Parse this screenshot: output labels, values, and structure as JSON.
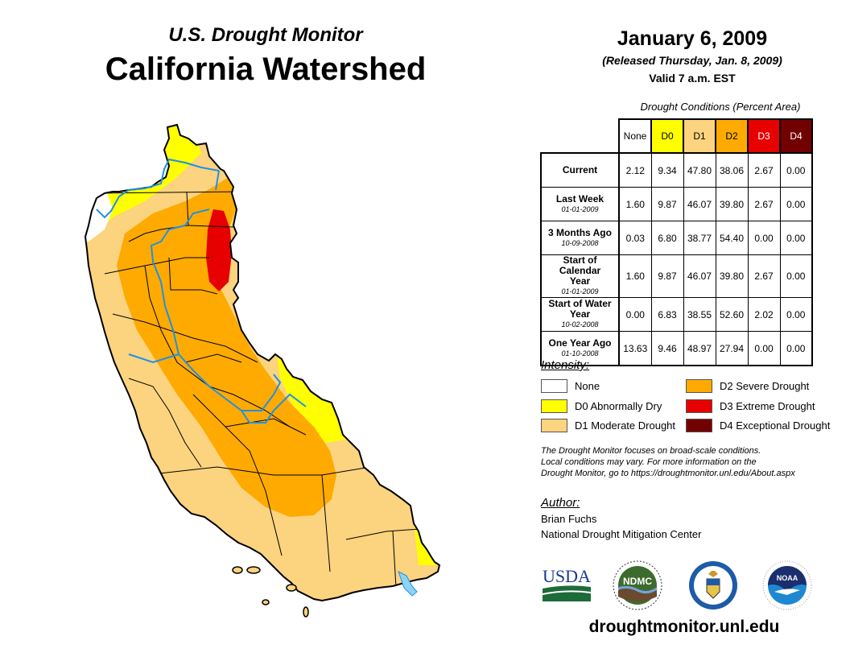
{
  "header": {
    "subtitle": "U.S. Drought Monitor",
    "title": "California Watershed",
    "date": "January 6, 2009",
    "released": "(Released Thursday, Jan. 8, 2009)",
    "valid": "Valid 7 a.m. EST"
  },
  "table": {
    "caption": "Drought Conditions (Percent Area)",
    "columns": [
      {
        "label": "None",
        "color": "#ffffff",
        "text_color": "#000000"
      },
      {
        "label": "D0",
        "color": "#ffff00",
        "text_color": "#000000"
      },
      {
        "label": "D1",
        "color": "#fcd37f",
        "text_color": "#000000"
      },
      {
        "label": "D2",
        "color": "#ffaa00",
        "text_color": "#000000"
      },
      {
        "label": "D3",
        "color": "#e60000",
        "text_color": "#ffffff"
      },
      {
        "label": "D4",
        "color": "#730000",
        "text_color": "#ffffff"
      }
    ],
    "rows": [
      {
        "label": "Current",
        "date": "",
        "values": [
          "2.12",
          "9.34",
          "47.80",
          "38.06",
          "2.67",
          "0.00"
        ]
      },
      {
        "label": "Last Week",
        "date": "01-01-2009",
        "values": [
          "1.60",
          "9.87",
          "46.07",
          "39.80",
          "2.67",
          "0.00"
        ]
      },
      {
        "label": "3 Months Ago",
        "date": "10-09-2008",
        "values": [
          "0.03",
          "6.80",
          "38.77",
          "54.40",
          "0.00",
          "0.00"
        ]
      },
      {
        "label": "Start of Calendar Year",
        "date": "01-01-2009",
        "values": [
          "1.60",
          "9.87",
          "46.07",
          "39.80",
          "2.67",
          "0.00"
        ]
      },
      {
        "label": "Start of Water Year",
        "date": "10-02-2008",
        "values": [
          "0.00",
          "6.83",
          "38.55",
          "52.60",
          "2.02",
          "0.00"
        ]
      },
      {
        "label": "One Year Ago",
        "date": "01-10-2008",
        "values": [
          "13.63",
          "9.46",
          "48.97",
          "27.94",
          "0.00",
          "0.00"
        ]
      }
    ]
  },
  "legend": {
    "title": "Intensity:",
    "items": [
      {
        "label": "None",
        "color": "#ffffff"
      },
      {
        "label": "D0 Abnormally Dry",
        "color": "#ffff00"
      },
      {
        "label": "D1 Moderate Drought",
        "color": "#fcd37f"
      },
      {
        "label": "D2 Severe Drought",
        "color": "#ffaa00"
      },
      {
        "label": "D3 Extreme Drought",
        "color": "#e60000"
      },
      {
        "label": "D4 Exceptional Drought",
        "color": "#730000"
      }
    ]
  },
  "disclaimer": [
    "The Drought Monitor focuses on broad-scale conditions.",
    "Local conditions may vary. For more information on the",
    "Drought Monitor, go to https://droughtmonitor.unl.edu/About.aspx"
  ],
  "author": {
    "title": "Author:",
    "name": "Brian Fuchs",
    "org": "National Drought Mitigation Center"
  },
  "logos": {
    "usda": "USDA",
    "ndmc": "NDMC",
    "noaa": "NOAA"
  },
  "footer": {
    "url": "droughtmonitor.unl.edu"
  },
  "map_colors": {
    "none": "#ffffff",
    "d0": "#ffff00",
    "d1": "#fcd37f",
    "d2": "#ffaa00",
    "d3": "#e60000",
    "river": "#1e90e6",
    "lake": "#8fd3f0"
  }
}
